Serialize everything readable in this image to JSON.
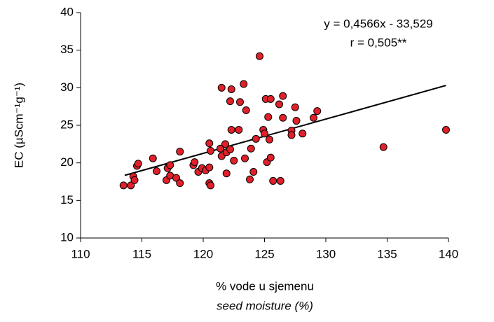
{
  "chart_data": {
    "type": "scatter",
    "x_label": "% vode u sjemenu",
    "x_label_2": "seed moisture (%)",
    "y_label": "EC (µScm⁻¹g⁻¹)",
    "annotations": [
      "y = 0,4566x - 33,529",
      "r = 0,505**"
    ],
    "xlim": [
      110,
      140
    ],
    "xticks": [
      110,
      115,
      120,
      125,
      130,
      135,
      140
    ],
    "ylim": [
      10,
      40
    ],
    "yticks": [
      10,
      15,
      20,
      25,
      30,
      35,
      40
    ],
    "grid": false,
    "series": [
      {
        "color": "#e0202a",
        "x": [
          113.5,
          114.1,
          114.3,
          114.4,
          114.6,
          114.7,
          115.9,
          116.2,
          117.0,
          117.1,
          117.3,
          117.3,
          117.8,
          118.1,
          118.1,
          119.2,
          119.3,
          119.6,
          119.9,
          120.2,
          120.5,
          120.5,
          120.6,
          120.5,
          120.6,
          121.4,
          121.5,
          121.5,
          121.8,
          121.9,
          121.9,
          122.2,
          122.2,
          122.3,
          122.3,
          122.5,
          122.9,
          123.0,
          123.3,
          123.5,
          123.4,
          123.9,
          123.8,
          124.1,
          124.3,
          124.6,
          124.9,
          125.0,
          125.1,
          125.2,
          125.3,
          125.4,
          125.5,
          125.5,
          125.7,
          126.2,
          126.3,
          126.5,
          126.5,
          127.2,
          127.2,
          127.5,
          127.6,
          128.1,
          129.0,
          129.3,
          134.7,
          139.8
        ],
        "values": [
          17.0,
          17.0,
          18.2,
          17.7,
          19.6,
          19.9,
          20.6,
          18.9,
          17.7,
          19.3,
          18.3,
          19.7,
          18.0,
          17.3,
          21.5,
          19.7,
          20.1,
          18.8,
          19.3,
          19.0,
          19.4,
          22.6,
          21.6,
          17.3,
          17.0,
          21.9,
          20.9,
          30.0,
          22.5,
          21.4,
          18.6,
          21.8,
          28.2,
          29.8,
          24.4,
          20.3,
          24.4,
          28.1,
          30.5,
          27.0,
          20.6,
          21.9,
          17.8,
          18.8,
          23.2,
          34.2,
          24.4,
          23.9,
          28.5,
          20.1,
          26.1,
          23.1,
          28.5,
          20.7,
          17.6,
          27.8,
          17.6,
          28.9,
          26.0,
          24.3,
          23.7,
          27.4,
          25.6,
          23.9,
          26.0,
          26.9,
          22.1,
          24.4
        ]
      }
    ],
    "trendline": {
      "slope": 0.4566,
      "intercept": -33.529,
      "x_range": [
        113.6,
        139.8
      ]
    }
  }
}
